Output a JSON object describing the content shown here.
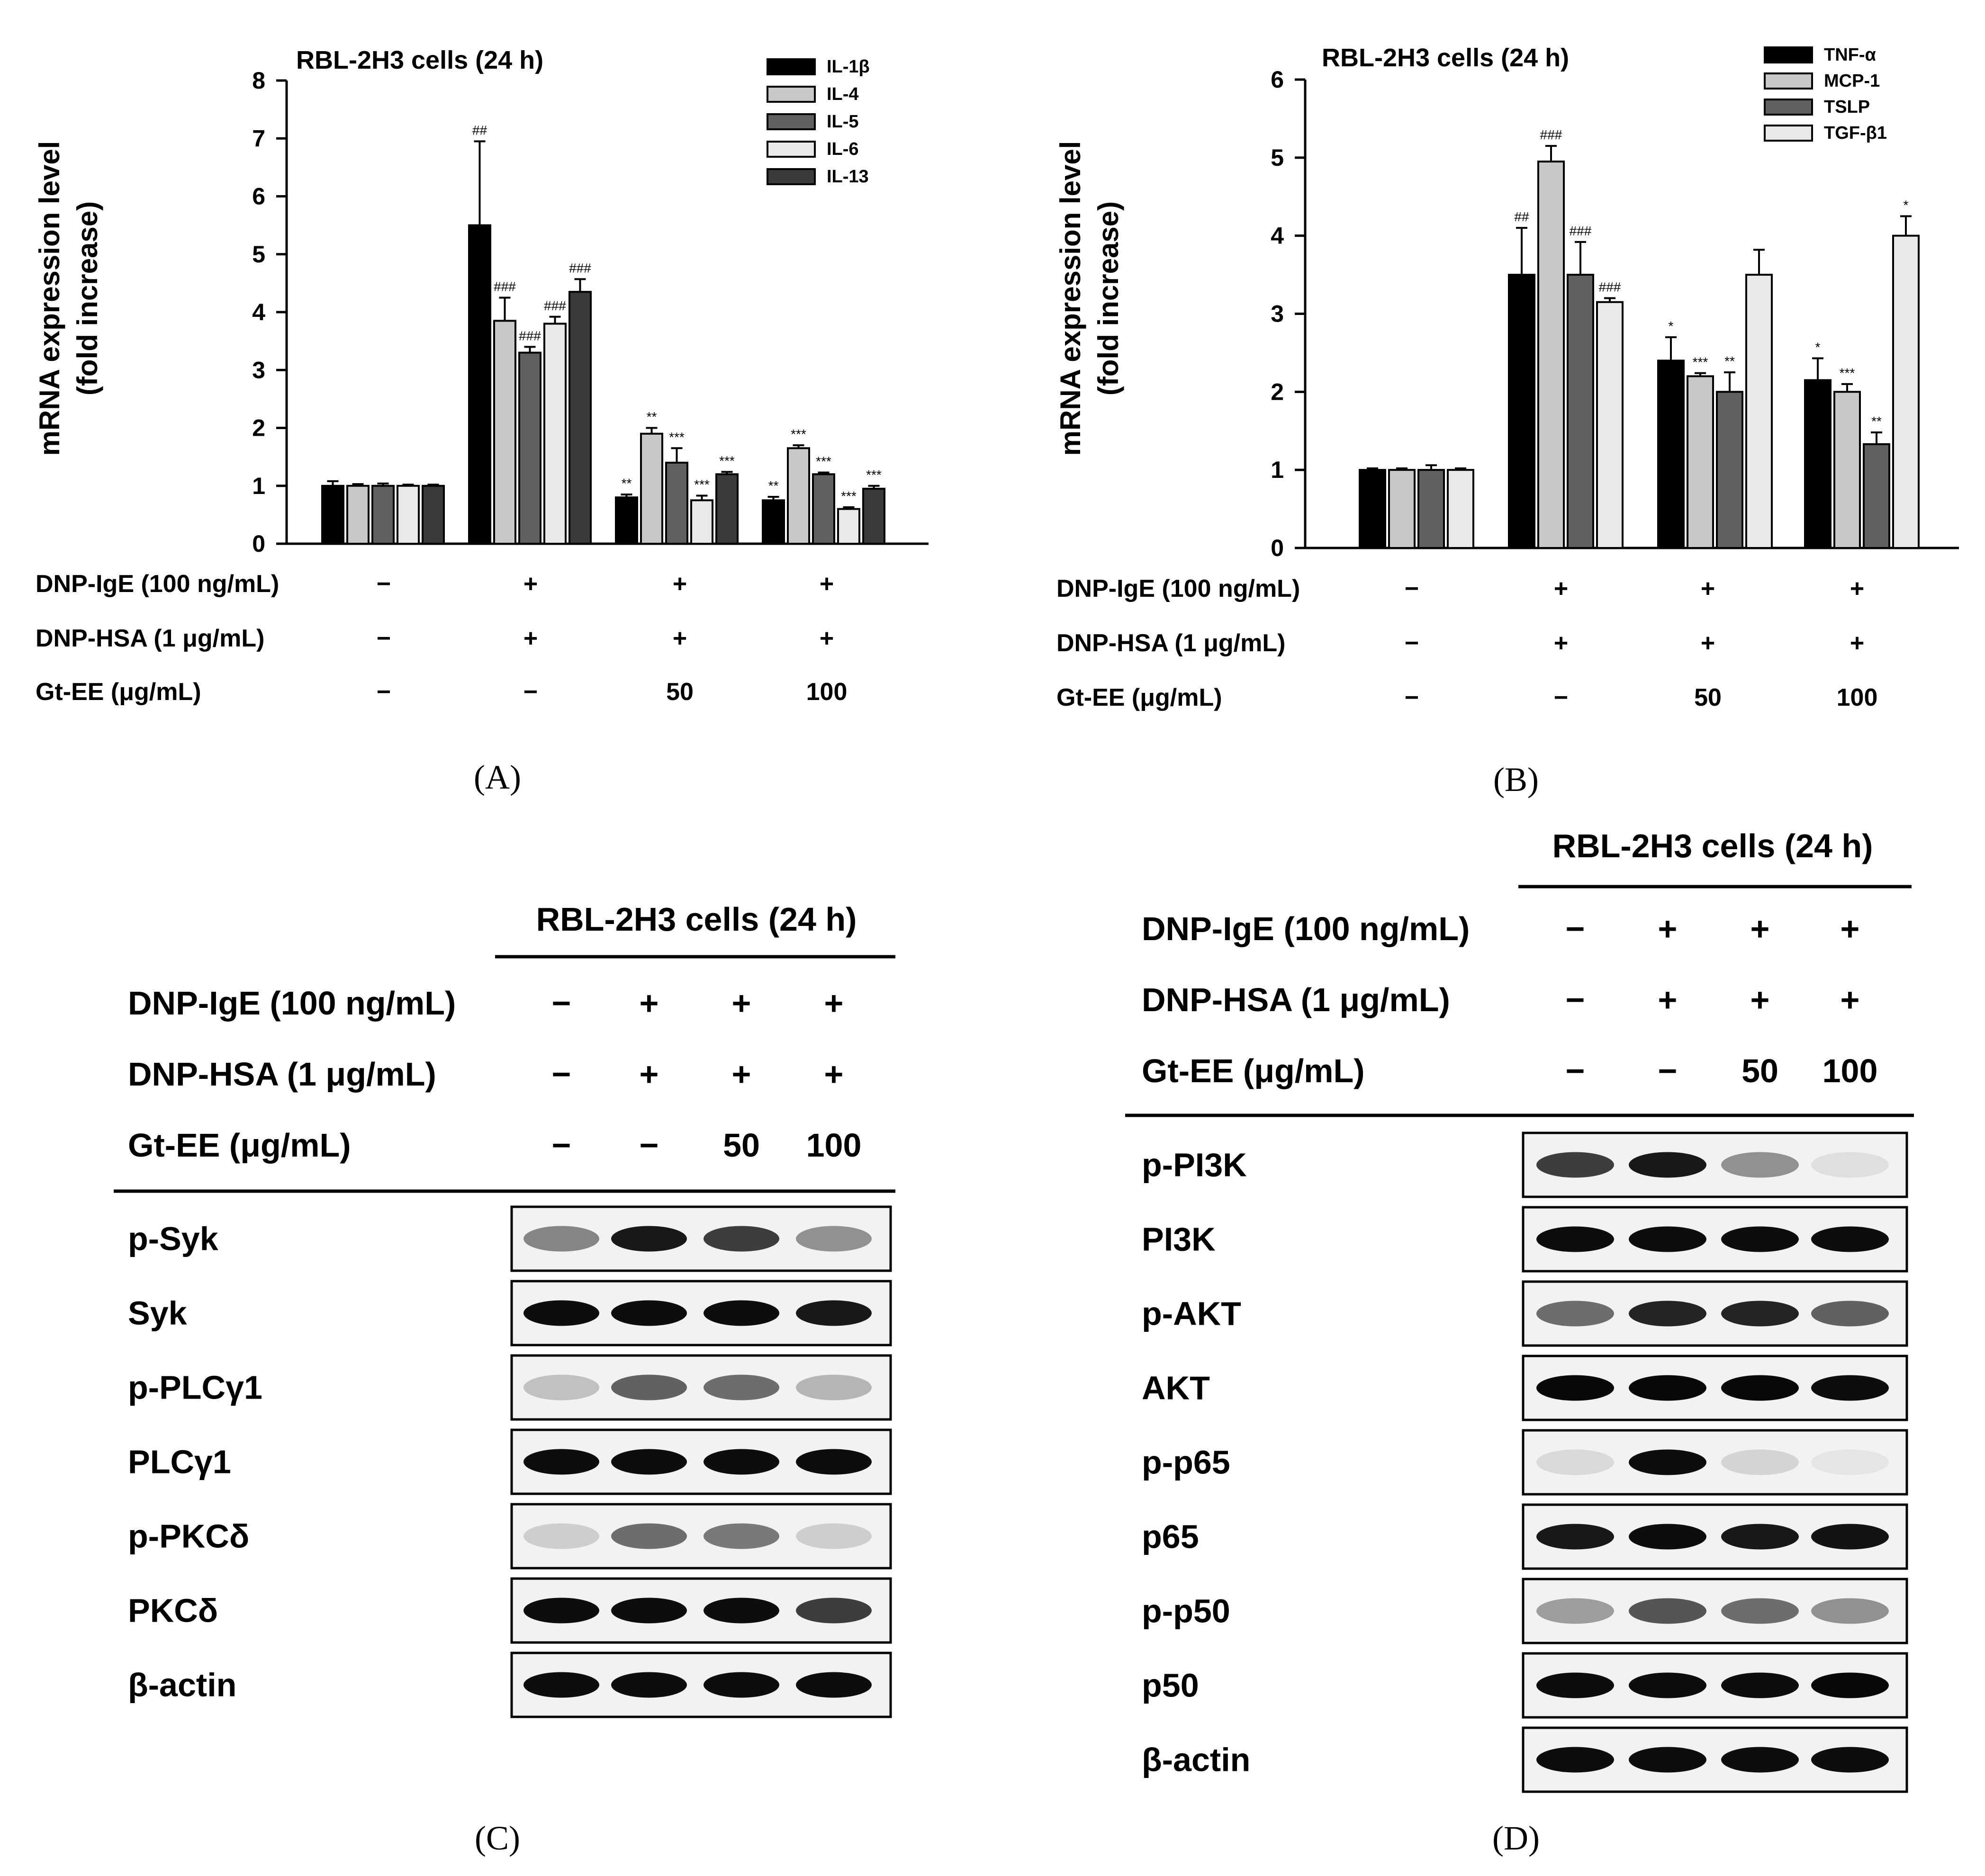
{
  "panels": {
    "A": {
      "label": "(A)",
      "chart_data": {
        "type": "bar",
        "title": "RBL-2H3 cells (24 h)",
        "ylabel": "mRNA expression level",
        "ylabel2": "(fold increase)",
        "ylim": [
          0,
          8
        ],
        "yticks": [
          "0",
          "1",
          "2",
          "3",
          "4",
          "5",
          "6",
          "7",
          "8"
        ],
        "legend_position": "top-right",
        "series": [
          {
            "name": "IL-1β",
            "color": "#000000",
            "values": [
              1.0,
              5.5,
              0.8,
              0.75
            ],
            "errors": [
              0.08,
              1.45,
              0.05,
              0.06
            ],
            "annotations": [
              "",
              "##",
              "**",
              "**"
            ]
          },
          {
            "name": "IL-4",
            "color": "#c8c8c8",
            "values": [
              1.0,
              3.85,
              1.9,
              1.65
            ],
            "errors": [
              0.03,
              0.4,
              0.1,
              0.05
            ],
            "annotations": [
              "",
              "###",
              "**",
              "***"
            ]
          },
          {
            "name": "IL-5",
            "color": "#606060",
            "values": [
              1.0,
              3.3,
              1.4,
              1.2
            ],
            "errors": [
              0.04,
              0.1,
              0.25,
              0.03
            ],
            "annotations": [
              "",
              "###",
              "***",
              "***"
            ]
          },
          {
            "name": "IL-6",
            "color": "#e9e9e9",
            "values": [
              1.0,
              3.8,
              0.75,
              0.6
            ],
            "errors": [
              0.02,
              0.12,
              0.08,
              0.03
            ],
            "annotations": [
              "",
              "###",
              "***",
              "***"
            ]
          },
          {
            "name": "IL-13",
            "color": "#3a3a3a",
            "values": [
              1.0,
              4.35,
              1.2,
              0.95
            ],
            "errors": [
              0.02,
              0.22,
              0.04,
              0.05
            ],
            "annotations": [
              "",
              "###",
              "***",
              "***"
            ]
          }
        ]
      }
    },
    "B": {
      "label": "(B)",
      "chart_data": {
        "type": "bar",
        "title": "RBL-2H3 cells (24 h)",
        "ylabel": "mRNA expression level",
        "ylabel2": "(fold increase)",
        "ylim": [
          0,
          6
        ],
        "yticks": [
          "0",
          "1",
          "2",
          "3",
          "4",
          "5",
          "6"
        ],
        "legend_position": "top-right",
        "series": [
          {
            "name": "TNF-α",
            "color": "#000000",
            "values": [
              1.0,
              3.5,
              2.4,
              2.15
            ],
            "errors": [
              0.02,
              0.6,
              0.3,
              0.28
            ],
            "annotations": [
              "",
              "##",
              "*",
              "*"
            ]
          },
          {
            "name": "MCP-1",
            "color": "#c8c8c8",
            "values": [
              1.0,
              4.95,
              2.2,
              2.0
            ],
            "errors": [
              0.02,
              0.2,
              0.04,
              0.1
            ],
            "annotations": [
              "",
              "###",
              "***",
              "***"
            ]
          },
          {
            "name": "TSLP",
            "color": "#606060",
            "values": [
              1.0,
              3.5,
              2.0,
              1.33
            ],
            "errors": [
              0.06,
              0.42,
              0.25,
              0.15
            ],
            "annotations": [
              "",
              "###",
              "**",
              "**"
            ]
          },
          {
            "name": "TGF-β1",
            "color": "#e9e9e9",
            "values": [
              1.0,
              3.15,
              3.5,
              4.0
            ],
            "errors": [
              0.02,
              0.05,
              0.32,
              0.25
            ],
            "annotations": [
              "",
              "###",
              "",
              "*"
            ]
          }
        ]
      }
    },
    "C": {
      "label": "(C)",
      "header": "RBL-2H3 cells (24 h)",
      "bands": [
        "p-Syk",
        "Syk",
        "p-PLCγ1",
        "PLCγ1",
        "p-PKCδ",
        "PKCδ",
        "β-actin"
      ],
      "band_intensity": [
        [
          0.45,
          0.9,
          0.75,
          0.4
        ],
        [
          0.95,
          0.95,
          0.95,
          0.9
        ],
        [
          0.2,
          0.6,
          0.55,
          0.25
        ],
        [
          0.95,
          0.95,
          0.95,
          0.95
        ],
        [
          0.15,
          0.55,
          0.5,
          0.15
        ],
        [
          0.95,
          0.95,
          0.95,
          0.75
        ],
        [
          0.95,
          0.95,
          0.95,
          0.95
        ]
      ]
    },
    "D": {
      "label": "(D)",
      "header": "RBL-2H3 cells (24 h)",
      "bands": [
        "p-PI3K",
        "PI3K",
        "p-AKT",
        "AKT",
        "p-p65",
        "p65",
        "p-p50",
        "p50",
        "β-actin"
      ],
      "band_intensity": [
        [
          0.75,
          0.9,
          0.4,
          0.08
        ],
        [
          0.95,
          0.95,
          0.95,
          0.95
        ],
        [
          0.55,
          0.85,
          0.85,
          0.6
        ],
        [
          0.97,
          0.97,
          0.97,
          0.95
        ],
        [
          0.1,
          0.95,
          0.12,
          0.05
        ],
        [
          0.9,
          0.95,
          0.9,
          0.92
        ],
        [
          0.35,
          0.65,
          0.55,
          0.4
        ],
        [
          0.95,
          0.95,
          0.95,
          0.97
        ],
        [
          0.95,
          0.95,
          0.95,
          0.95
        ]
      ]
    }
  },
  "conditions": {
    "rows": [
      {
        "label": "DNP-IgE (100 ng/mL)",
        "values": [
          "−",
          "+",
          "+",
          "+"
        ]
      },
      {
        "label": "DNP-HSA (1 μg/mL)",
        "values": [
          "−",
          "+",
          "+",
          "+"
        ]
      },
      {
        "label": "Gt-EE (μg/mL)",
        "values": [
          "−",
          "−",
          "50",
          "100"
        ]
      }
    ]
  }
}
